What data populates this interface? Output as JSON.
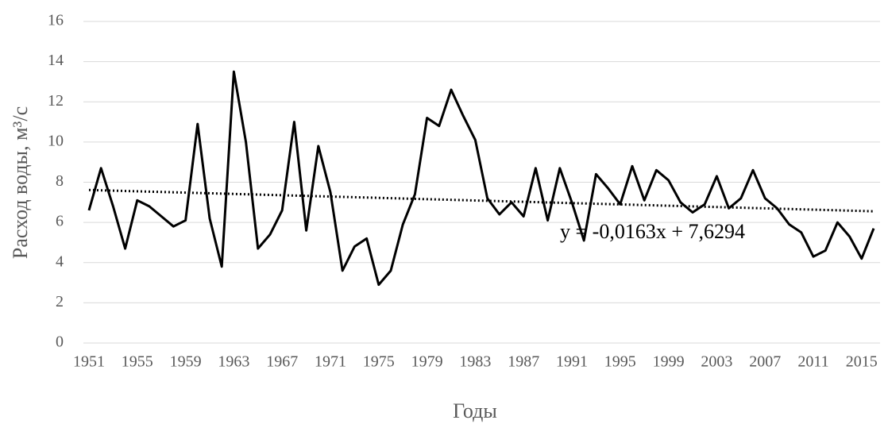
{
  "chart_data": {
    "type": "line",
    "x": [
      1951,
      1952,
      1953,
      1954,
      1955,
      1956,
      1957,
      1958,
      1959,
      1960,
      1961,
      1962,
      1963,
      1964,
      1965,
      1966,
      1967,
      1968,
      1969,
      1970,
      1971,
      1972,
      1973,
      1974,
      1975,
      1976,
      1977,
      1978,
      1979,
      1980,
      1981,
      1982,
      1983,
      1984,
      1985,
      1986,
      1987,
      1988,
      1989,
      1990,
      1991,
      1992,
      1993,
      1994,
      1995,
      1996,
      1997,
      1998,
      1999,
      2000,
      2001,
      2002,
      2003,
      2004,
      2005,
      2006,
      2007,
      2008,
      2009,
      2010,
      2011,
      2012,
      2013,
      2014,
      2015,
      2016
    ],
    "values": [
      6.6,
      8.7,
      6.8,
      4.7,
      7.1,
      6.8,
      6.3,
      5.8,
      6.1,
      10.9,
      6.2,
      3.8,
      13.5,
      10.0,
      4.7,
      5.4,
      6.6,
      11.0,
      5.6,
      9.8,
      7.5,
      3.6,
      4.8,
      5.2,
      2.9,
      3.6,
      5.9,
      7.4,
      11.2,
      10.8,
      12.6,
      11.3,
      10.1,
      7.2,
      6.4,
      7.0,
      6.3,
      8.7,
      6.1,
      8.7,
      7.0,
      5.1,
      8.4,
      7.7,
      6.9,
      8.8,
      7.1,
      8.6,
      8.1,
      7.0,
      6.5,
      6.9,
      8.3,
      6.7,
      7.2,
      8.6,
      7.2,
      6.7,
      5.9,
      5.5,
      4.3,
      4.6,
      6.0,
      5.3,
      4.2,
      5.7
    ],
    "color": "#000000",
    "xlim": [
      1951,
      2016
    ],
    "xticks": [
      1951,
      1955,
      1959,
      1963,
      1967,
      1971,
      1975,
      1979,
      1983,
      1987,
      1991,
      1995,
      1999,
      2003,
      2007,
      2011,
      2015
    ],
    "ylim": [
      0,
      16
    ],
    "yticks": [
      0,
      2,
      4,
      6,
      8,
      10,
      12,
      14,
      16
    ],
    "grid": true,
    "xlabel": "Годы",
    "ylabel": "Расход воды, м³/с",
    "trendline": {
      "slope": -0.0163,
      "intercept": 7.6294,
      "label": "y = -0,0163x + 7,6294"
    }
  }
}
